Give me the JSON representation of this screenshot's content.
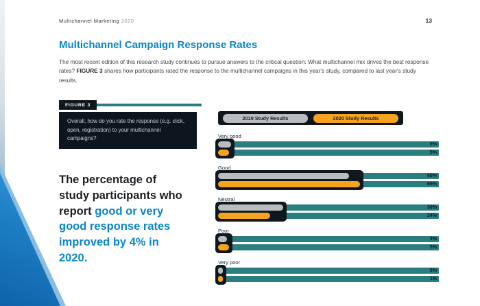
{
  "header": {
    "doc_title": "Multichannel Marketing",
    "doc_year": "2020",
    "page_number": "13"
  },
  "title": "Multichannel Campaign Response Rates",
  "intro": {
    "before_bold": "The most recent edition of this research study continues to pursue answers to the critical question: What multichannel mix drives the best response rates? ",
    "bold": "FIGURE 3",
    "after_bold": " shares how participants rated the response to the multichannel campaigns in this year's study, compared to last year's study results."
  },
  "figure": {
    "label": "FIGURE 3"
  },
  "question": "Overall, how do you rate the response (e.g. click, open, registration) to your multichannel campaigns?",
  "statement": {
    "plain": "The percentage of study participants who report ",
    "highlight": "good or very good response rates improved by 4% in 2020."
  },
  "chart_data": {
    "type": "bar",
    "orientation": "horizontal",
    "title": "How participants rate the response to their multichannel campaigns",
    "categories": [
      "Very good",
      "Good",
      "Neutral",
      "Poor",
      "Very poor"
    ],
    "series": [
      {
        "name": "2019 Study Results",
        "color": "#b9bdbe",
        "values": [
          6,
          60,
          30,
          4,
          0
        ]
      },
      {
        "name": "2020 Study Results",
        "color": "#f6a41f",
        "values": [
          5,
          65,
          24,
          5,
          1
        ]
      }
    ],
    "value_labels": [
      [
        "6%",
        "5%"
      ],
      [
        "60%",
        "65%"
      ],
      [
        "30%",
        "24%"
      ],
      [
        "4%",
        "5%"
      ],
      [
        "0%",
        "1%"
      ]
    ],
    "xlim": [
      0,
      100
    ],
    "legend_position": "top",
    "track_color": "#2a7e80",
    "bar_container_color": "#10181f"
  },
  "colors": {
    "accent_blue": "#0a86c9",
    "teal": "#2a7e80",
    "orange": "#f6a41f",
    "gray_pill": "#b9bdbe",
    "dark_box": "#0d161e",
    "corner_blue": "#1b75bc"
  }
}
